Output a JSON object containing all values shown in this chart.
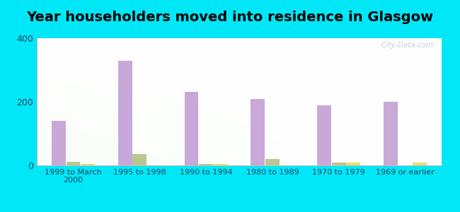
{
  "title": "Year householders moved into residence in Glasgow",
  "categories": [
    "1999 to March\n2000",
    "1995 to 1998",
    "1990 to 1994",
    "1980 to 1989",
    "1970 to 1979",
    "1969 or earlier"
  ],
  "series": {
    "White Non-Hispanic": [
      140,
      328,
      232,
      210,
      188,
      200
    ],
    "American Indian and Alaska Native": [
      12,
      35,
      5,
      20,
      8,
      0
    ],
    "Two or More Races": [
      5,
      0,
      5,
      0,
      8,
      8
    ]
  },
  "colors": {
    "White Non-Hispanic": "#c8a8d8",
    "American Indian and Alaska Native": "#b8c890",
    "Two or More Races": "#e8e070"
  },
  "ylim": [
    0,
    400
  ],
  "yticks": [
    0,
    200,
    400
  ],
  "background_outer": "#00e8f8",
  "bar_width": 0.22,
  "watermark": "City-Data.com",
  "title_fontsize": 14,
  "tick_fontsize": 8,
  "label_color": "#204060"
}
